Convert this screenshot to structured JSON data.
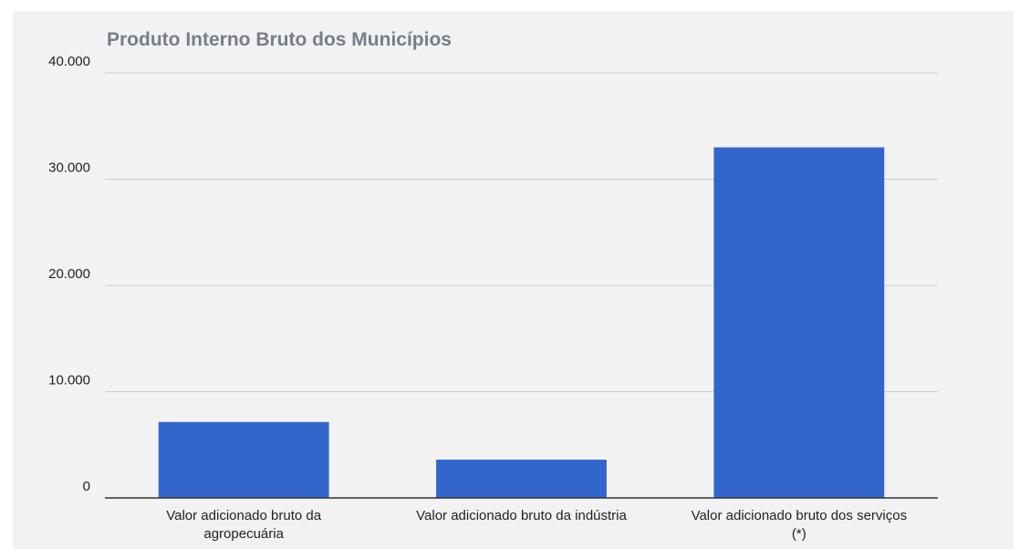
{
  "chart_data": {
    "type": "bar",
    "title": "Produto Interno Bruto dos Municípios",
    "categories": [
      "Valor adicionado bruto da agropecuária",
      "Valor adicionado bruto da indústria",
      "Valor adicionado bruto dos serviços (*)"
    ],
    "values": [
      7150,
      3600,
      33000
    ],
    "color": "#3366cc",
    "ylim": [
      0,
      40000
    ],
    "yticks": [
      0,
      {
        "value": 10000,
        "label": "10.000"
      },
      {
        "value": 20000,
        "label": "20.000"
      },
      {
        "value": 30000,
        "label": "30.000"
      },
      {
        "value": 40000,
        "label": "40.000"
      }
    ],
    "grid": true
  }
}
